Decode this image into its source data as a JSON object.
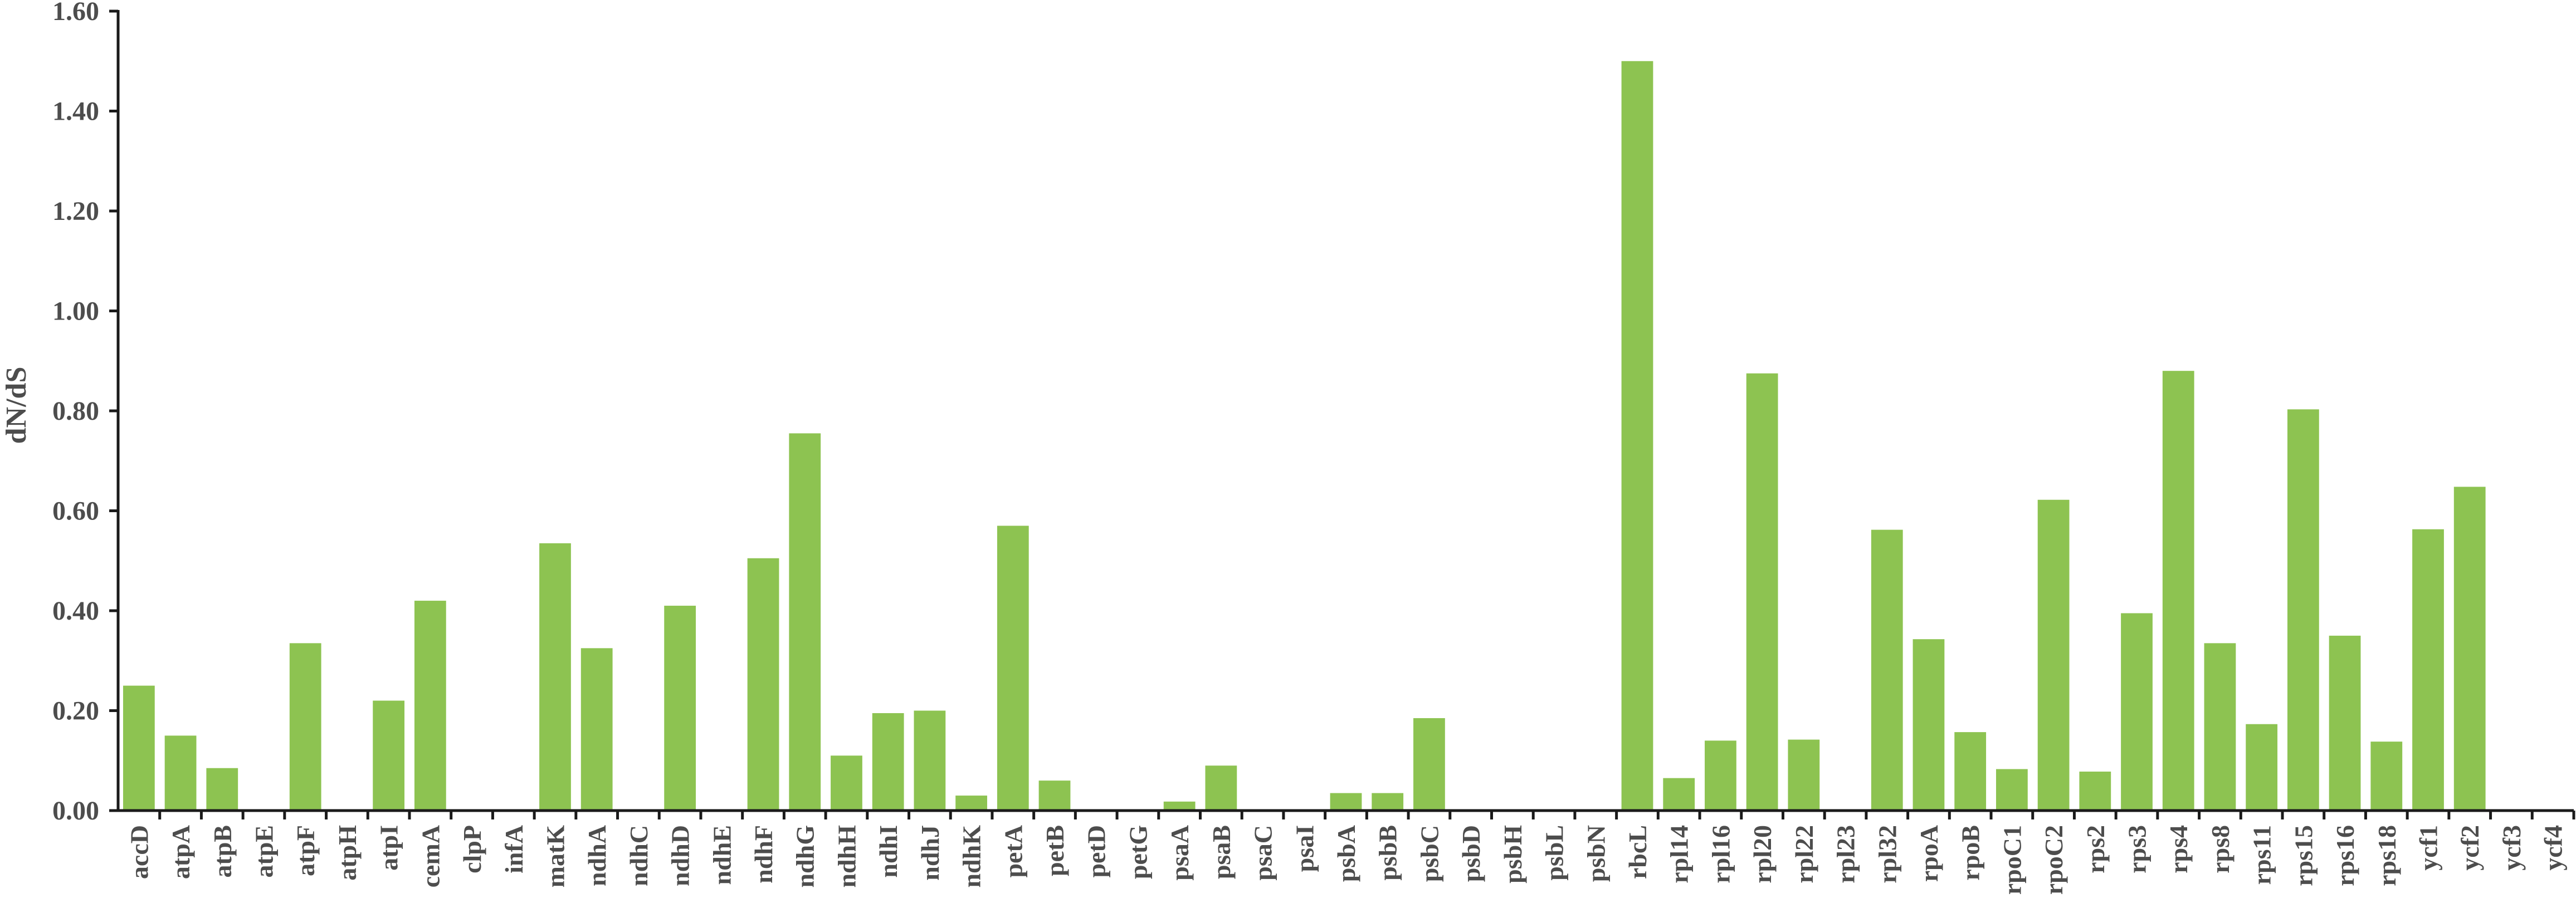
{
  "chart_data": {
    "type": "bar",
    "title": "",
    "xlabel": "",
    "ylabel": "dN/dS",
    "ylim": [
      0,
      1.6
    ],
    "yticks": [
      "0.00",
      "0.20",
      "0.40",
      "0.60",
      "0.80",
      "1.00",
      "1.20",
      "1.40",
      "1.60"
    ],
    "grid": false,
    "legend": "none",
    "bar_color": "#8dc351",
    "categories": [
      "accD",
      "atpA",
      "atpB",
      "atpE",
      "atpF",
      "atpH",
      "atpI",
      "cemA",
      "clpP",
      "infA",
      "matK",
      "ndhA",
      "ndhC",
      "ndhD",
      "ndhE",
      "ndhF",
      "ndhG",
      "ndhH",
      "ndhI",
      "ndhJ",
      "ndhK",
      "petA",
      "petB",
      "petD",
      "petG",
      "psaA",
      "psaB",
      "psaC",
      "psaI",
      "psbA",
      "psbB",
      "psbC",
      "psbD",
      "psbH",
      "psbL",
      "psbN",
      "rbcL",
      "rpl14",
      "rpl16",
      "rpl20",
      "rpl22",
      "rpl23",
      "rpl32",
      "rpoA",
      "rpoB",
      "rpoC1",
      "rpoC2",
      "rps2",
      "rps3",
      "rps4",
      "rps8",
      "rps11",
      "rps15",
      "rps16",
      "rps18",
      "ycf1",
      "ycf2",
      "ycf3",
      "ycf4"
    ],
    "values": [
      0.25,
      0.15,
      0.085,
      0,
      0.335,
      0,
      0.22,
      0.42,
      0,
      0,
      0.535,
      0.325,
      0,
      0.41,
      0,
      0.505,
      0.755,
      0.11,
      0.195,
      0.2,
      0.03,
      0.57,
      0.06,
      0,
      0,
      0.018,
      0.09,
      0,
      0,
      0.035,
      0.035,
      0.185,
      0,
      0,
      0,
      0,
      1.5,
      0.065,
      0.14,
      0.875,
      0.142,
      0,
      0.562,
      0.343,
      0.157,
      0.083,
      0.622,
      0.078,
      0.395,
      0.88,
      0.335,
      0.173,
      0.803,
      0.35,
      0.138,
      0.563,
      0.648,
      0,
      0
    ]
  }
}
